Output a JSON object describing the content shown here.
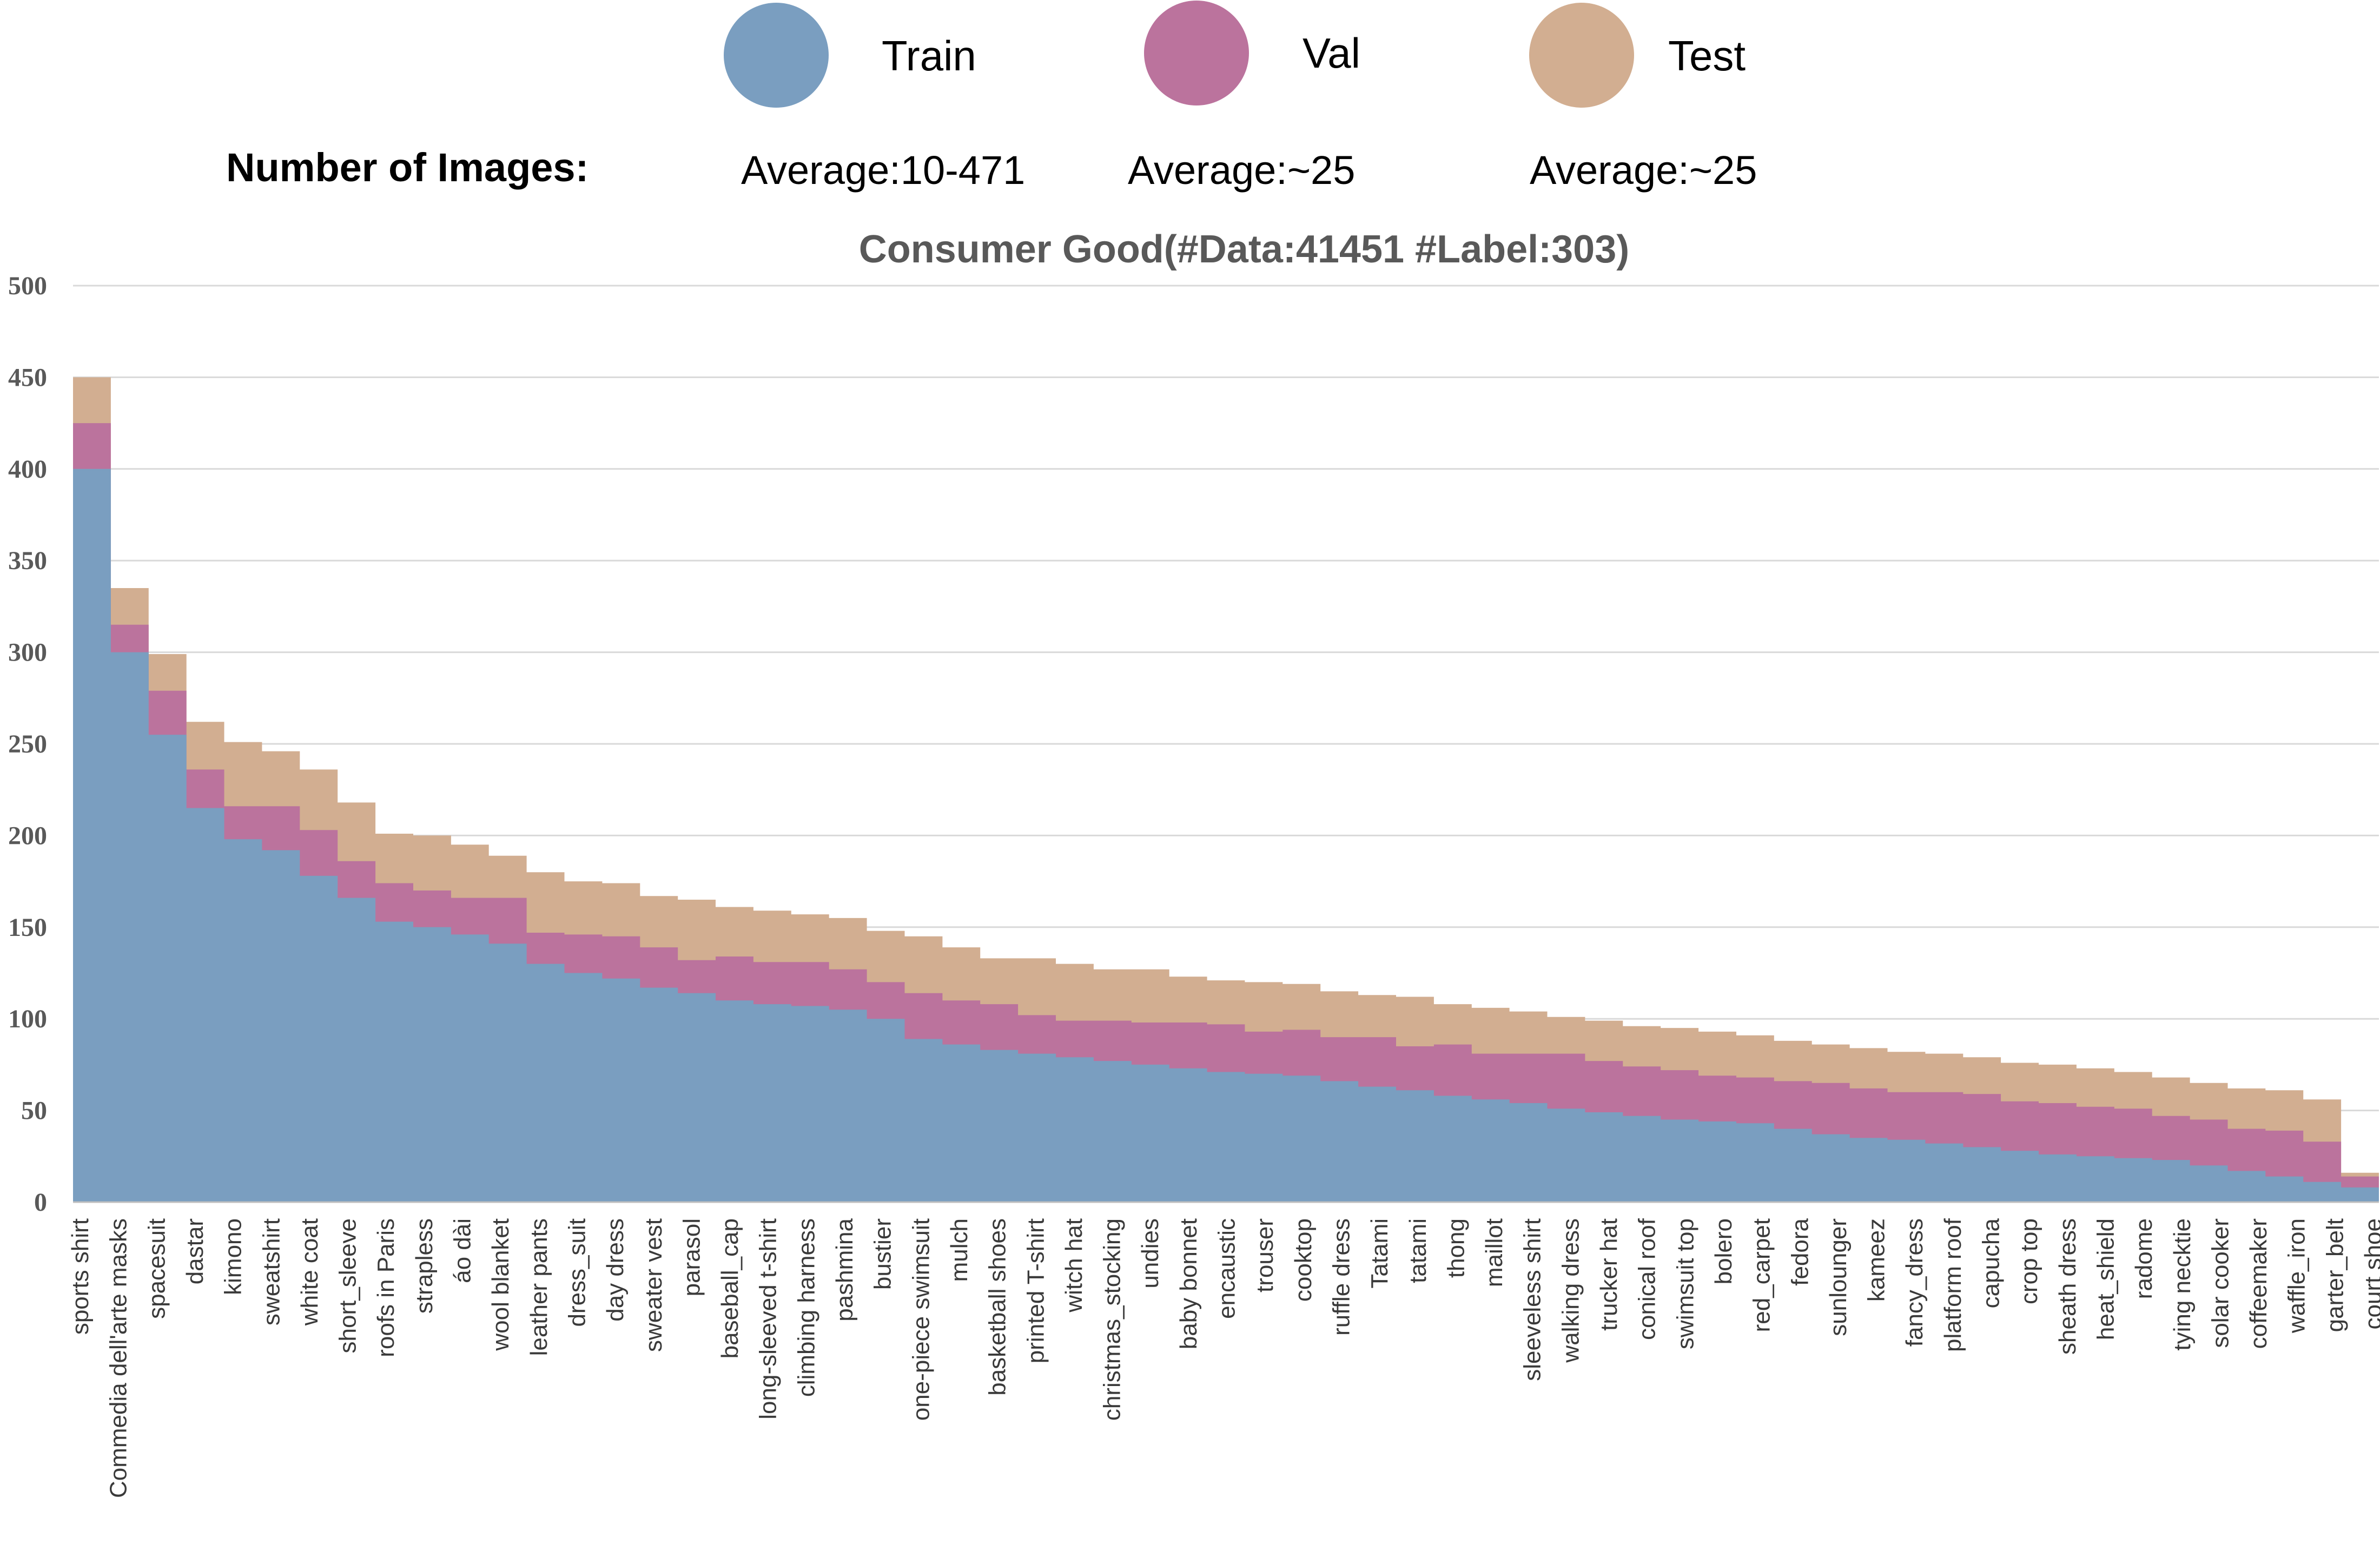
{
  "legend": {
    "items": [
      {
        "label": "Train",
        "color": "#7a9ec0"
      },
      {
        "label": "Val",
        "color": "#bb739d"
      },
      {
        "label": "Test",
        "color": "#d2ae91"
      }
    ]
  },
  "stats": {
    "heading": "Number of Images:",
    "values": [
      "Average:10-471",
      "Average:~25",
      "Average:~25"
    ]
  },
  "chart_data": {
    "type": "area",
    "stacked": true,
    "title": "Consumer Good(#Data:41451 #Label:303)",
    "xlabel": "",
    "ylabel": "",
    "ylim": [
      0,
      500
    ],
    "yticks": [
      0,
      50,
      100,
      150,
      200,
      250,
      300,
      350,
      400,
      450,
      500
    ],
    "grid": true,
    "legend_position": "top",
    "category_count": 303,
    "x_tick_labels": [
      "sports shirt",
      "Commedia dell'arte masks",
      "spacesuit",
      "dastar",
      "kimono",
      "sweatshirt",
      "white coat",
      "short_sleeve",
      "roofs in Paris",
      "strapless",
      "áo dài",
      "wool blanket",
      "leather pants",
      "dress_suit",
      "day dress",
      "sweater vest",
      "parasol",
      "baseball_cap",
      "long-sleeved t-shirt",
      "climbing harness",
      "pashmina",
      "bustier",
      "one-piece swimsuit",
      "mulch",
      "basketball shoes",
      "printed T-shirt",
      "witch hat",
      "christmas_stocking",
      "undies",
      "baby bonnet",
      "encaustic",
      "trouser",
      "cooktop",
      "ruffle dress",
      "Tatami",
      "tatami",
      "thong",
      "maillot",
      "sleeveless shirt",
      "walking dress",
      "trucker hat",
      "conical roof",
      "swimsuit top",
      "bolero",
      "red_carpet",
      "fedora",
      "sunlounger",
      "kameez",
      "fancy_dress",
      "platform roof",
      "capucha",
      "crop top",
      "sheath dress",
      "heat_shield",
      "radome",
      "tying necktie",
      "solar cooker",
      "coffeemaker",
      "waffle_iron",
      "garter_belt",
      "court shoe"
    ],
    "series": [
      {
        "name": "Train",
        "color": "#7a9ec0",
        "values": [
          400,
          300,
          255,
          215,
          198,
          192,
          178,
          166,
          153,
          150,
          146,
          141,
          130,
          125,
          122,
          117,
          114,
          110,
          108,
          107,
          105,
          100,
          89,
          86,
          83,
          81,
          79,
          77,
          75,
          73,
          71,
          70,
          69,
          66,
          63,
          61,
          58,
          56,
          54,
          51,
          49,
          47,
          45,
          44,
          43,
          40,
          37,
          35,
          34,
          32,
          30,
          28,
          26,
          25,
          24,
          23,
          20,
          17,
          14,
          11,
          8
        ]
      },
      {
        "name": "Val",
        "color": "#bb739d",
        "values": [
          25,
          15,
          24,
          21,
          18,
          24,
          25,
          20,
          21,
          20,
          20,
          25,
          17,
          21,
          23,
          22,
          18,
          24,
          23,
          24,
          22,
          20,
          25,
          24,
          25,
          21,
          20,
          22,
          23,
          25,
          26,
          23,
          25,
          24,
          27,
          24,
          28,
          25,
          27,
          30,
          28,
          27,
          27,
          25,
          25,
          26,
          28,
          27,
          26,
          28,
          29,
          27,
          28,
          27,
          27,
          24,
          25,
          23,
          25,
          22,
          6
        ]
      },
      {
        "name": "Test",
        "color": "#d2ae91",
        "values": [
          25,
          20,
          20,
          26,
          35,
          30,
          33,
          32,
          27,
          30,
          29,
          23,
          33,
          29,
          29,
          28,
          33,
          27,
          28,
          26,
          28,
          28,
          31,
          29,
          25,
          31,
          31,
          28,
          29,
          25,
          24,
          27,
          25,
          25,
          23,
          27,
          22,
          25,
          23,
          20,
          22,
          22,
          23,
          24,
          23,
          22,
          21,
          22,
          22,
          21,
          20,
          21,
          21,
          21,
          20,
          21,
          20,
          22,
          22,
          23,
          2
        ]
      }
    ]
  }
}
